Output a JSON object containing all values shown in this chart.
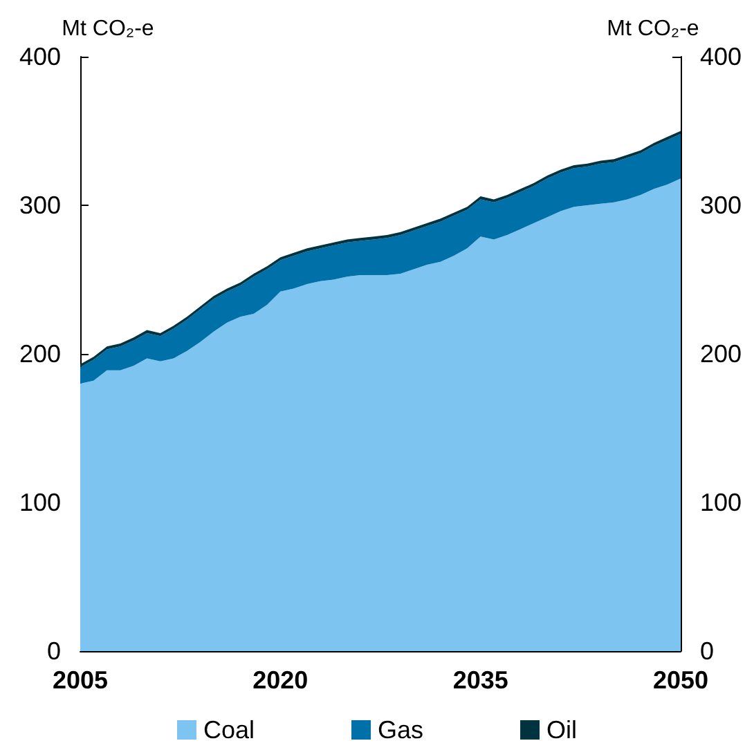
{
  "chart_data": {
    "type": "area",
    "stacked": true,
    "ylabel": "Mt CO₂-e",
    "y2label": "Mt CO₂-e",
    "x": [
      2005,
      2006,
      2007,
      2008,
      2009,
      2010,
      2011,
      2012,
      2013,
      2014,
      2015,
      2016,
      2017,
      2018,
      2019,
      2020,
      2021,
      2022,
      2023,
      2024,
      2025,
      2026,
      2027,
      2028,
      2029,
      2030,
      2031,
      2032,
      2033,
      2034,
      2035,
      2036,
      2037,
      2038,
      2039,
      2040,
      2041,
      2042,
      2043,
      2044,
      2045,
      2046,
      2047,
      2048,
      2049,
      2050
    ],
    "series": [
      {
        "name": "Coal",
        "color": "#7dc5f0",
        "values": [
          180,
          182,
          189,
          189,
          192,
          197,
          195,
          197,
          202,
          208,
          215,
          221,
          225,
          227,
          233,
          242,
          244,
          247,
          249,
          250,
          252,
          253,
          253,
          253,
          254,
          257,
          260,
          262,
          266,
          271,
          279,
          277,
          280,
          284,
          288,
          292,
          296,
          299,
          300,
          301,
          302,
          304,
          307,
          311,
          314,
          318
        ]
      },
      {
        "name": "Gas",
        "color": "#0070a8",
        "values": [
          11,
          14,
          14,
          16,
          17,
          17,
          17,
          20,
          21,
          22,
          22,
          21,
          21,
          25,
          24,
          21,
          22,
          22,
          22,
          23,
          23,
          23,
          24,
          25,
          26,
          26,
          26,
          27,
          27,
          26,
          25,
          25,
          25,
          25,
          25,
          26,
          26,
          26,
          26,
          27,
          27,
          28,
          28,
          29,
          30,
          30
        ]
      },
      {
        "name": "Oil",
        "color": "#003340",
        "values": [
          2,
          2,
          2,
          2,
          2,
          2,
          2,
          2,
          2,
          2,
          2,
          2,
          2,
          2,
          2,
          2,
          2,
          2,
          2,
          2,
          2,
          2,
          2,
          2,
          2,
          2,
          2,
          2,
          2,
          2,
          2,
          2,
          2,
          2,
          2,
          2,
          2,
          2,
          2,
          2,
          2,
          2,
          2,
          2,
          2,
          2
        ]
      }
    ],
    "xlim": [
      2005,
      2050
    ],
    "xticks": [
      2005,
      2020,
      2035,
      2050
    ],
    "ylim": [
      0,
      400
    ],
    "yticks": [
      0,
      100,
      200,
      300,
      400
    ],
    "y2lim": [
      0,
      400
    ],
    "y2ticks": [
      0,
      100,
      200,
      300,
      400
    ],
    "grid": false,
    "legend": "bottom"
  }
}
